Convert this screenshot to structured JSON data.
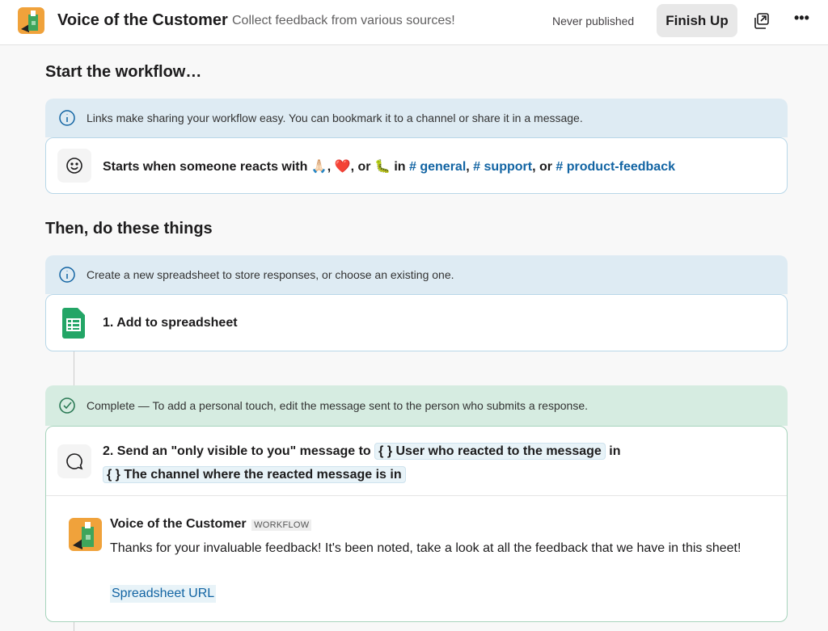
{
  "header": {
    "title": "Voice of the Customer",
    "subtitle": "Collect feedback from various sources!",
    "status": "Never published",
    "finish_label": "Finish Up"
  },
  "start": {
    "heading": "Start the workflow…",
    "info": "Links make sharing your workflow easy. You can bookmark it to a channel or share it in a message.",
    "trigger_prefix": "Starts when someone reacts with",
    "emoji": [
      "🙏🏻",
      "❤️",
      "🐛"
    ],
    "sep1": ",",
    "sep2": ", or",
    "in": "in",
    "channels": [
      "# general",
      "# support",
      "# product-feedback"
    ],
    "or": ", or"
  },
  "steps": {
    "heading": "Then, do these things",
    "step1_info": "Create a new spreadsheet to store responses, or choose an existing one.",
    "step1_label": "1. Add to spreadsheet",
    "step2_info": "Complete — To add a personal touch, edit the message sent to the person who submits a response.",
    "step2_prefix": "2. Send an \"only visible to you\" message to",
    "step2_token1": "{ } User who reacted to the message",
    "step2_in": "in",
    "step2_token2": "{ } The channel where the reacted message is in",
    "preview": {
      "sender": "Voice of the Customer",
      "badge": "WORKFLOW",
      "message": "Thanks for your invaluable feedback! It's been noted, take a look at all the feedback that we have in this sheet!",
      "link": "Spreadsheet URL"
    }
  }
}
